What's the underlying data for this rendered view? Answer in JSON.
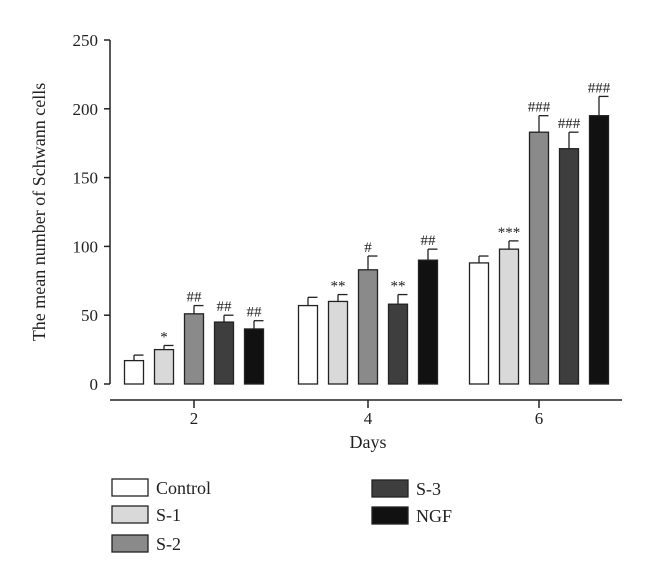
{
  "chart_data": {
    "type": "bar",
    "xlabel": "Days",
    "ylabel": "The mean number of Schwann cells",
    "ylim": [
      0,
      250
    ],
    "yticks": [
      0,
      50,
      100,
      150,
      200,
      250
    ],
    "categories": [
      "2",
      "4",
      "6"
    ],
    "grid": false,
    "legend_position": "bottom",
    "series": [
      {
        "name": "Control",
        "color": "#ffffff",
        "values": [
          17,
          57,
          88
        ],
        "errors": [
          4,
          6,
          5
        ],
        "annotations": [
          "",
          "",
          ""
        ]
      },
      {
        "name": "S-1",
        "color": "#d9d9d9",
        "values": [
          25,
          60,
          98
        ],
        "errors": [
          3,
          5,
          6
        ],
        "annotations": [
          "*",
          "**",
          "***"
        ]
      },
      {
        "name": "S-2",
        "color": "#8a8a8a",
        "values": [
          51,
          83,
          183
        ],
        "errors": [
          6,
          10,
          12
        ],
        "annotations": [
          "##",
          "#",
          "###"
        ]
      },
      {
        "name": "S-3",
        "color": "#3e3e3e",
        "values": [
          45,
          58,
          171
        ],
        "errors": [
          5,
          7,
          12
        ],
        "annotations": [
          "##",
          "**",
          "###"
        ]
      },
      {
        "name": "NGF",
        "color": "#111111",
        "values": [
          40,
          90,
          195
        ],
        "errors": [
          6,
          8,
          14
        ],
        "annotations": [
          "##",
          "##",
          "###"
        ]
      }
    ]
  }
}
